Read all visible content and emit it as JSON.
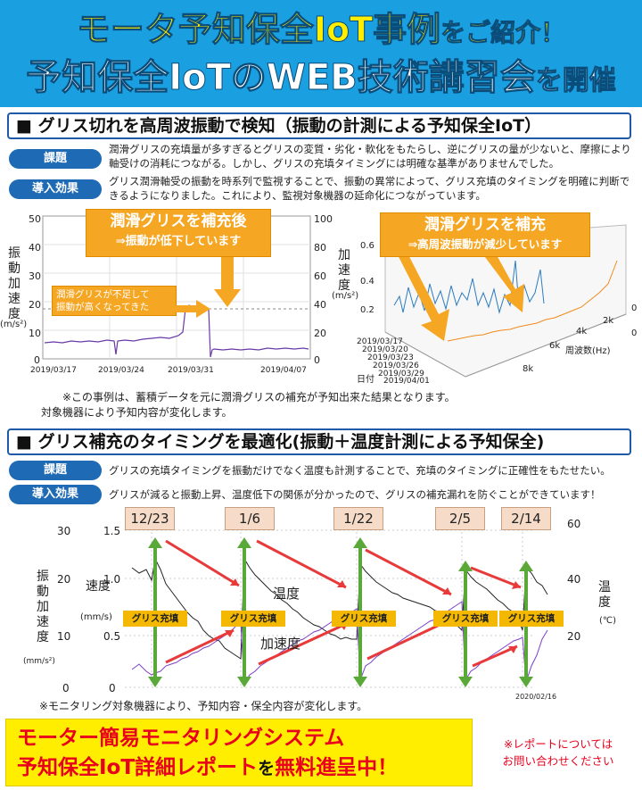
{
  "banner": {
    "line1_main": "モータ予知保全IoT事例",
    "line1_sub": "をご紹介！",
    "line2_main": "予知保全IoTのWEB技術講習会",
    "line2_sub": "を開催"
  },
  "section1": {
    "heading": "■ グリス切れを高周波振動で検知（振動の計測による予知保全IoT）",
    "issue_tag": "課題",
    "issue_text": "潤滑グリスの充填量が多すぎるとグリスの変質・劣化・軟化をもたらし、逆にグリスの量が少ないと、摩擦により軸受けの消耗につながる。しかし、グリスの充填タイミングには明確な基準がありませんでした。",
    "effect_tag": "導入効果",
    "effect_text": "グリス潤滑軸受の振動を時系列で監視することで、振動の異常によって、グリス充填のタイミングを明確に判断できるようになりました。これにより、監視対象機器の延命化につながっています。",
    "note1": "※この事例は、蓄積データを元に潤滑グリスの補充が予知出来た結果となります。",
    "note2": "対象機器により予知内容が変化します。"
  },
  "chart1": {
    "callout_title": "潤滑グリスを補充後",
    "callout_sub": "⇒振動が低下しています",
    "small_callout_1": "潤滑グリスが不足して",
    "small_callout_2": "振動が高くなってきた",
    "ylabel": "振動加速度",
    "yunit": "(m/s²)",
    "left_ticks": [
      "50",
      "40",
      "30",
      "20",
      "10",
      "0"
    ],
    "right_ticks": [
      "100",
      "80",
      "60",
      "40",
      "20",
      "0"
    ],
    "x_ticks": [
      "2019/03/17",
      "2019/03/24",
      "2019/03/31",
      "2019/04/07"
    ]
  },
  "chart2": {
    "callout_title": "潤滑グリスを補充",
    "callout_sub": "⇒高周波振動が減少しています",
    "ylabel": "加速度",
    "yunit": "(m/s²)",
    "z_ticks": [
      "0.6",
      "0.4",
      "0.2"
    ],
    "freq_ticks": [
      "2k",
      "4k",
      "6k",
      "8k"
    ],
    "freq_label": "周波数(Hz)",
    "date_label": "日付",
    "date_ticks": [
      "2019/03/17",
      "2019/03/20",
      "2019/03/23",
      "2019/03/26",
      "2019/03/29",
      "2019/04/01"
    ],
    "side_ticks": [
      "0",
      "0"
    ]
  },
  "section2": {
    "heading": "■ グリス補充のタイミングを最適化(振動＋温度計測による予知保全)",
    "issue_tag": "課題",
    "issue_text": "グリスの充填タイミングを振動だけでなく温度も計測することで、充填のタイミングに正確性をもたせたい。",
    "effect_tag": "導入効果",
    "effect_text": "グリスが減ると振動上昇、温度低下の関係が分かったので、グリスの補充漏れを防ぐことができています！",
    "note": "※モニタリング対象機器により、予知内容・保全内容が変化します。"
  },
  "chart3": {
    "dates": [
      "12/23",
      "1/6",
      "1/22",
      "2/5",
      "2/14"
    ],
    "grease_label": "グリス充填",
    "temp_label": "温度",
    "accel_label": "加速度",
    "left_accel_label": "振動加速度",
    "left_accel_unit": "(mm/s²)",
    "vel_label": "速度",
    "vel_unit": "(mm/s)",
    "temp_axis_label": "温度",
    "temp_unit": "(℃)",
    "accel_ticks": [
      "30",
      "20",
      "10",
      "0"
    ],
    "vel_ticks": [
      "1.5",
      "1.0",
      "0.5",
      "0"
    ],
    "temp_ticks": [
      "60",
      "40",
      "20"
    ],
    "end_date": "2020/02/16"
  },
  "footer": {
    "line1": "モーター簡易モニタリングシステム",
    "line2_main": "予知保全IoT詳細レポート",
    "line2_wo": "を",
    "line2_free": "無料進呈中！",
    "note1": "※レポートについては",
    "note2": "お問い合わせください"
  },
  "colors": {
    "banner_bg": "#1aa0e0",
    "banner_yellow": "#ffee00",
    "tag_blue": "#1e6ab4",
    "callout_orange": "#f5a623",
    "arrow_red": "#e83a3a",
    "arrow_green": "#5aa838",
    "footer_red": "#e8001c"
  }
}
